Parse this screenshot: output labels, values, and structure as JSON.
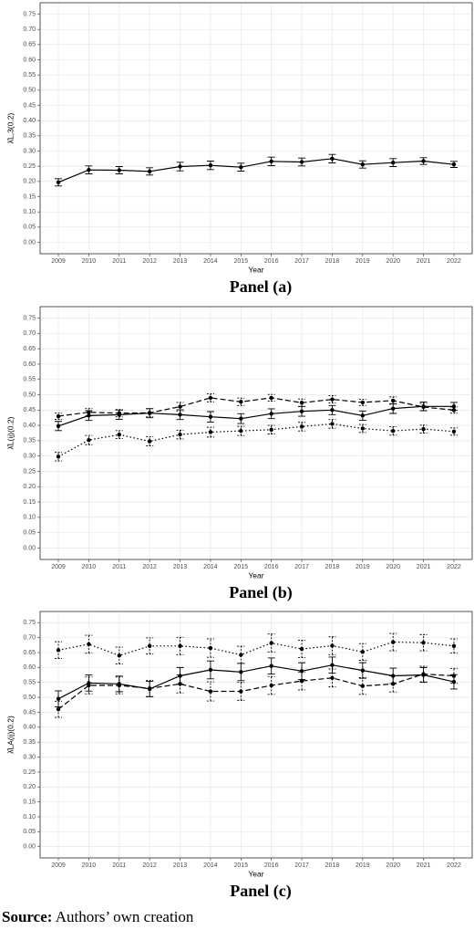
{
  "chart_data": [
    {
      "type": "line",
      "caption": "Panel (a)",
      "xlabel": "Year",
      "ylabel": "λ̂L,3(0.2)",
      "categories": [
        "2009",
        "2010",
        "2011",
        "2012",
        "2013",
        "2014",
        "2015",
        "2016",
        "2017",
        "2018",
        "2019",
        "2020",
        "2021",
        "2022"
      ],
      "ylim": [
        -0.0375,
        0.7875
      ],
      "yticks": [
        {
          "value": 0,
          "label": "0.00"
        },
        {
          "value": 0.05,
          "label": "0.05"
        },
        {
          "value": 0.1,
          "label": "0.10"
        },
        {
          "value": 0.15,
          "label": "0.15"
        },
        {
          "value": 0.2,
          "label": "0.20"
        },
        {
          "value": 0.25,
          "label": "0.25"
        },
        {
          "value": 0.3,
          "label": "0.30"
        },
        {
          "value": 0.35,
          "label": "0.35"
        },
        {
          "value": 0.4,
          "label": "0.40"
        },
        {
          "value": 0.45,
          "label": "0.45"
        },
        {
          "value": 0.5,
          "label": "0.50"
        },
        {
          "value": 0.55,
          "label": "0.55"
        },
        {
          "value": 0.6,
          "label": "0.60"
        },
        {
          "value": 0.65,
          "label": "0.65"
        },
        {
          "value": 0.7,
          "label": "0.70"
        },
        {
          "value": 0.75,
          "label": "0.75"
        }
      ],
      "grid": true,
      "series": [
        {
          "color": "#000000",
          "line_style": "solid",
          "values": [
            0.197,
            0.238,
            0.237,
            0.233,
            0.249,
            0.253,
            0.247,
            0.266,
            0.264,
            0.275,
            0.256,
            0.262,
            0.267,
            0.256
          ],
          "errors": [
            0.012,
            0.013,
            0.012,
            0.012,
            0.014,
            0.014,
            0.013,
            0.014,
            0.013,
            0.014,
            0.012,
            0.013,
            0.011,
            0.01
          ]
        }
      ]
    },
    {
      "type": "line",
      "caption": "Panel (b)",
      "xlabel": "Year",
      "ylabel": "λ̂L(ij)(0.2)",
      "categories": [
        "2009",
        "2010",
        "2011",
        "2012",
        "2013",
        "2014",
        "2015",
        "2016",
        "2017",
        "2018",
        "2019",
        "2020",
        "2021",
        "2022"
      ],
      "ylim": [
        -0.0375,
        0.7875
      ],
      "yticks": [
        {
          "value": 0,
          "label": "0.00"
        },
        {
          "value": 0.05,
          "label": "0.05"
        },
        {
          "value": 0.1,
          "label": "0.10"
        },
        {
          "value": 0.15,
          "label": "0.15"
        },
        {
          "value": 0.2,
          "label": "0.20"
        },
        {
          "value": 0.25,
          "label": "0.25"
        },
        {
          "value": 0.3,
          "label": "0.30"
        },
        {
          "value": 0.35,
          "label": "0.35"
        },
        {
          "value": 0.4,
          "label": "0.40"
        },
        {
          "value": 0.45,
          "label": "0.45"
        },
        {
          "value": 0.5,
          "label": "0.50"
        },
        {
          "value": 0.55,
          "label": "0.55"
        },
        {
          "value": 0.6,
          "label": "0.60"
        },
        {
          "value": 0.65,
          "label": "0.65"
        },
        {
          "value": 0.7,
          "label": "0.70"
        },
        {
          "value": 0.75,
          "label": "0.75"
        }
      ],
      "grid": true,
      "series": [
        {
          "color": "#000000",
          "line_style": "solid",
          "values": [
            0.398,
            0.432,
            0.435,
            0.44,
            0.435,
            0.428,
            0.422,
            0.438,
            0.446,
            0.45,
            0.432,
            0.455,
            0.462,
            0.462
          ],
          "errors": [
            0.015,
            0.016,
            0.015,
            0.015,
            0.016,
            0.017,
            0.016,
            0.016,
            0.016,
            0.015,
            0.015,
            0.016,
            0.014,
            0.013
          ]
        },
        {
          "color": "#000000",
          "line_style": "dashed",
          "values": [
            0.43,
            0.443,
            0.44,
            0.441,
            0.461,
            0.49,
            0.477,
            0.49,
            0.474,
            0.485,
            0.475,
            0.481,
            0.46,
            0.45
          ],
          "errors": [
            0.01,
            0.012,
            0.012,
            0.013,
            0.014,
            0.013,
            0.012,
            0.011,
            0.012,
            0.012,
            0.01,
            0.012,
            0.012,
            0.01
          ]
        },
        {
          "color": "#000000",
          "line_style": "dotted",
          "values": [
            0.298,
            0.352,
            0.37,
            0.348,
            0.37,
            0.378,
            0.382,
            0.386,
            0.396,
            0.405,
            0.39,
            0.382,
            0.388,
            0.38
          ],
          "errors": [
            0.014,
            0.015,
            0.013,
            0.015,
            0.014,
            0.016,
            0.015,
            0.014,
            0.014,
            0.014,
            0.013,
            0.014,
            0.013,
            0.012
          ]
        }
      ]
    },
    {
      "type": "line",
      "caption": "Panel (c)",
      "xlabel": "Year",
      "ylabel": "λ̂LA(ij)(0.2)",
      "categories": [
        "2009",
        "2010",
        "2011",
        "2012",
        "2013",
        "2014",
        "2015",
        "2016",
        "2017",
        "2018",
        "2019",
        "2020",
        "2021",
        "2022"
      ],
      "ylim": [
        -0.0375,
        0.7875
      ],
      "yticks": [
        {
          "value": 0,
          "label": "0.00"
        },
        {
          "value": 0.05,
          "label": "0.05"
        },
        {
          "value": 0.1,
          "label": "0.10"
        },
        {
          "value": 0.15,
          "label": "0.15"
        },
        {
          "value": 0.2,
          "label": "0.20"
        },
        {
          "value": 0.25,
          "label": "0.25"
        },
        {
          "value": 0.3,
          "label": "0.30"
        },
        {
          "value": 0.35,
          "label": "0.35"
        },
        {
          "value": 0.4,
          "label": "0.40"
        },
        {
          "value": 0.45,
          "label": "0.45"
        },
        {
          "value": 0.5,
          "label": "0.50"
        },
        {
          "value": 0.55,
          "label": "0.55"
        },
        {
          "value": 0.6,
          "label": "0.60"
        },
        {
          "value": 0.65,
          "label": "0.65"
        },
        {
          "value": 0.7,
          "label": "0.70"
        },
        {
          "value": 0.75,
          "label": "0.75"
        }
      ],
      "grid": true,
      "series": [
        {
          "color": "#000000",
          "line_style": "solid",
          "values": [
            0.495,
            0.548,
            0.545,
            0.528,
            0.572,
            0.592,
            0.585,
            0.605,
            0.588,
            0.608,
            0.59,
            0.572,
            0.575,
            0.552
          ],
          "errors": [
            0.027,
            0.027,
            0.026,
            0.026,
            0.028,
            0.03,
            0.029,
            0.027,
            0.028,
            0.027,
            0.026,
            0.026,
            0.025,
            0.024
          ]
        },
        {
          "color": "#000000",
          "line_style": "dashed",
          "values": [
            0.46,
            0.54,
            0.54,
            0.53,
            0.545,
            0.52,
            0.52,
            0.54,
            0.555,
            0.565,
            0.538,
            0.545,
            0.578,
            0.572
          ],
          "errors": [
            0.027,
            0.028,
            0.028,
            0.027,
            0.03,
            0.032,
            0.03,
            0.03,
            0.03,
            0.03,
            0.028,
            0.027,
            0.026,
            0.025
          ]
        },
        {
          "color": "#000000",
          "line_style": "dotted",
          "values": [
            0.658,
            0.678,
            0.64,
            0.672,
            0.672,
            0.665,
            0.642,
            0.682,
            0.662,
            0.673,
            0.652,
            0.685,
            0.683,
            0.672
          ],
          "errors": [
            0.028,
            0.03,
            0.028,
            0.027,
            0.029,
            0.031,
            0.029,
            0.03,
            0.029,
            0.03,
            0.028,
            0.029,
            0.027,
            0.024
          ]
        }
      ]
    }
  ],
  "source": {
    "label": "Source:",
    "text": "Authors’ own creation"
  }
}
